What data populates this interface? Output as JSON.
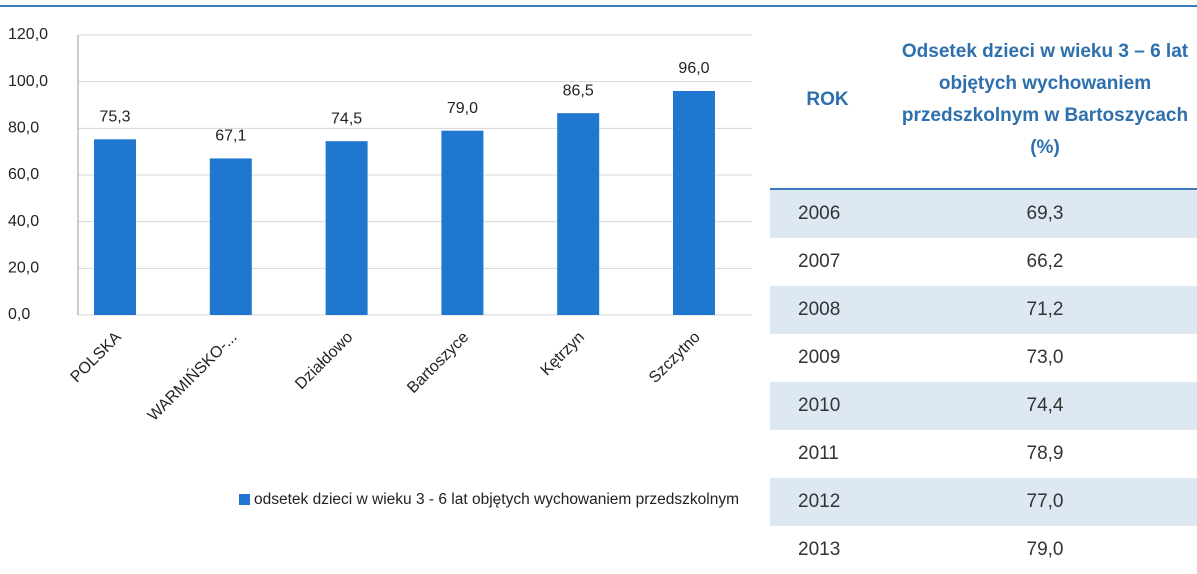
{
  "chart_data": {
    "type": "bar",
    "categories": [
      "POLSKA",
      "WARMIŃSKO-...",
      "Działdowo",
      "Bartoszyce",
      "Kętrzyn",
      "Szczytno"
    ],
    "series": [
      {
        "name": "odsetek dzieci w wieku 3 - 6 lat objętych wychowaniem przedszkolnym",
        "color": "#1f77d0",
        "values": [
          75.3,
          67.1,
          74.5,
          79.0,
          86.5,
          96.0
        ],
        "value_labels": [
          "75,3",
          "67,1",
          "74,5",
          "79,0",
          "86,5",
          "96,0"
        ]
      }
    ],
    "ylim": [
      0,
      120
    ],
    "yticks": [
      {
        "value": 0,
        "label": "0,0"
      },
      {
        "value": 20,
        "label": "20,0"
      },
      {
        "value": 40,
        "label": "40,0"
      },
      {
        "value": 60,
        "label": "60,0"
      },
      {
        "value": 80,
        "label": "80,0"
      },
      {
        "value": 100,
        "label": "100,0"
      },
      {
        "value": 120,
        "label": "120,0"
      }
    ],
    "grid": true,
    "legend": "bottom"
  },
  "table": {
    "header": [
      "ROK",
      "Odsetek dzieci w wieku 3 – 6 lat objętych wychowaniem przedszkolnym w Bartoszycach (%)"
    ],
    "rows": [
      [
        "2006",
        "69,3"
      ],
      [
        "2007",
        "66,2"
      ],
      [
        "2008",
        "71,2"
      ],
      [
        "2009",
        "73,0"
      ],
      [
        "2010",
        "74,4"
      ],
      [
        "2011",
        "78,9"
      ],
      [
        "2012",
        "77,0"
      ],
      [
        "2013",
        "79,0"
      ]
    ]
  }
}
